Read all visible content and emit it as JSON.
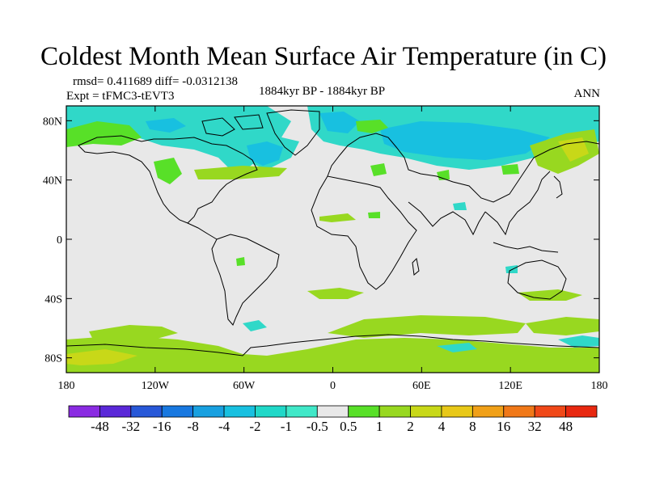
{
  "title": "Coldest Month Mean Surface Air Temperature (in C)",
  "stats": "rmsd= 0.411689 diff= -0.0312138",
  "expt": "Expt = tFMC3-tEVT3",
  "period": "1884kyr BP - 1884kyr BP",
  "season": "ANN",
  "map": {
    "projection": "cylindrical equidistant",
    "lon_range": [
      -180,
      180
    ],
    "lat_range": [
      -90,
      90
    ],
    "lat_labels": [
      {
        "label": "80N",
        "lat": 80
      },
      {
        "label": "40N",
        "lat": 40
      },
      {
        "label": "0",
        "lat": 0
      },
      {
        "label": "40S",
        "lat": -40
      },
      {
        "label": "80S",
        "lat": -80
      }
    ],
    "lon_labels": [
      {
        "label": "180",
        "lon": -180
      },
      {
        "label": "120W",
        "lon": -120
      },
      {
        "label": "60W",
        "lon": -60
      },
      {
        "label": "0",
        "lon": 0
      },
      {
        "label": "60E",
        "lon": 60
      },
      {
        "label": "120E",
        "lon": 120
      },
      {
        "label": "180",
        "lon": 180
      }
    ]
  },
  "colorbar": {
    "labels": [
      "-48",
      "-32",
      "-16",
      "-8",
      "-4",
      "-2",
      "-1",
      "-0.5",
      "0.5",
      "1",
      "2",
      "4",
      "8",
      "16",
      "32",
      "48"
    ],
    "colors": [
      "#8a2be2",
      "#5a28d8",
      "#2858d8",
      "#1878e0",
      "#18a0e0",
      "#18c0e0",
      "#20d8c8",
      "#40e8c8",
      "#e8e8e8",
      "#58e028",
      "#98d820",
      "#c8d818",
      "#e8c818",
      "#f0a018",
      "#f07818",
      "#f04818",
      "#e82810"
    ]
  }
}
